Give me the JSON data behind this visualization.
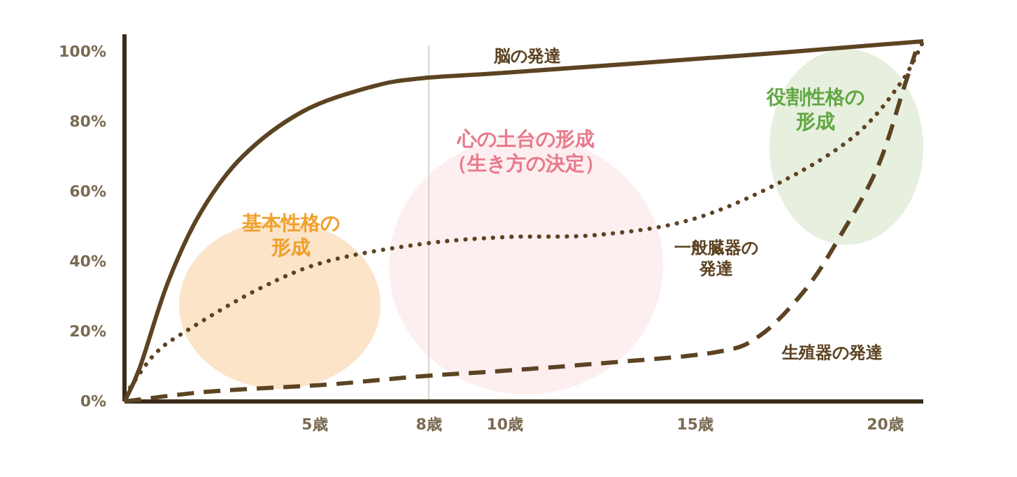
{
  "chart_data": {
    "type": "line",
    "x": [
      0,
      0.4,
      1.14,
      2,
      3.1,
      4.7,
      6.5,
      7.8,
      10,
      16.1,
      21
    ],
    "series": [
      {
        "name": "脳の発達",
        "color": "#5c4322",
        "line_style": "solid",
        "values": [
          0,
          9.6,
          34,
          54,
          70,
          83,
          90,
          92.4,
          94,
          98.8,
          103
        ]
      },
      {
        "name": "一般臓器の発達",
        "color": "#5c4322",
        "line_style": "dotted",
        "x": [
          0.15,
          0.8,
          1.6,
          3.5,
          5.3,
          7.8,
          10,
          12.4,
          14.9,
          17.3,
          19.2,
          20.4,
          21
        ],
        "values": [
          4,
          13.6,
          20,
          32,
          40,
          45,
          47,
          47.6,
          52,
          63,
          76,
          91,
          103
        ]
      },
      {
        "name": "生殖器の発達",
        "color": "#5c4322",
        "line_style": "dashed",
        "x": [
          0,
          2.2,
          5.3,
          7.8,
          10,
          12.4,
          15.5,
          16.7,
          17.9,
          18.8,
          19.8,
          20.5,
          20.8
        ],
        "values": [
          0,
          2.8,
          4.8,
          7.2,
          8.8,
          10.8,
          14,
          18.8,
          32,
          47,
          67,
          90,
          100
        ]
      }
    ],
    "xlim": [
      0,
      21
    ],
    "ylim": [
      0,
      105
    ],
    "xticks": [
      {
        "value": 5,
        "label": "5歳"
      },
      {
        "value": 8,
        "label": "8歳"
      },
      {
        "value": 10,
        "label": "10歳"
      },
      {
        "value": 15,
        "label": "15歳"
      },
      {
        "value": 20,
        "label": "20歳"
      }
    ],
    "yticks": [
      {
        "value": 0,
        "label": "0%"
      },
      {
        "value": 20,
        "label": "20%"
      },
      {
        "value": 40,
        "label": "40%"
      },
      {
        "value": 60,
        "label": "60%"
      },
      {
        "value": 80,
        "label": "80%"
      },
      {
        "value": 100,
        "label": "100%"
      }
    ],
    "ref_lines": [
      {
        "axis": "x",
        "value": 8,
        "color": "#d8d4cc"
      }
    ],
    "annotations": [
      "基本性格の形成",
      "心の土台の形成（生き方の決定）",
      "役割性格の形成"
    ],
    "grid": false,
    "marker": "none"
  }
}
